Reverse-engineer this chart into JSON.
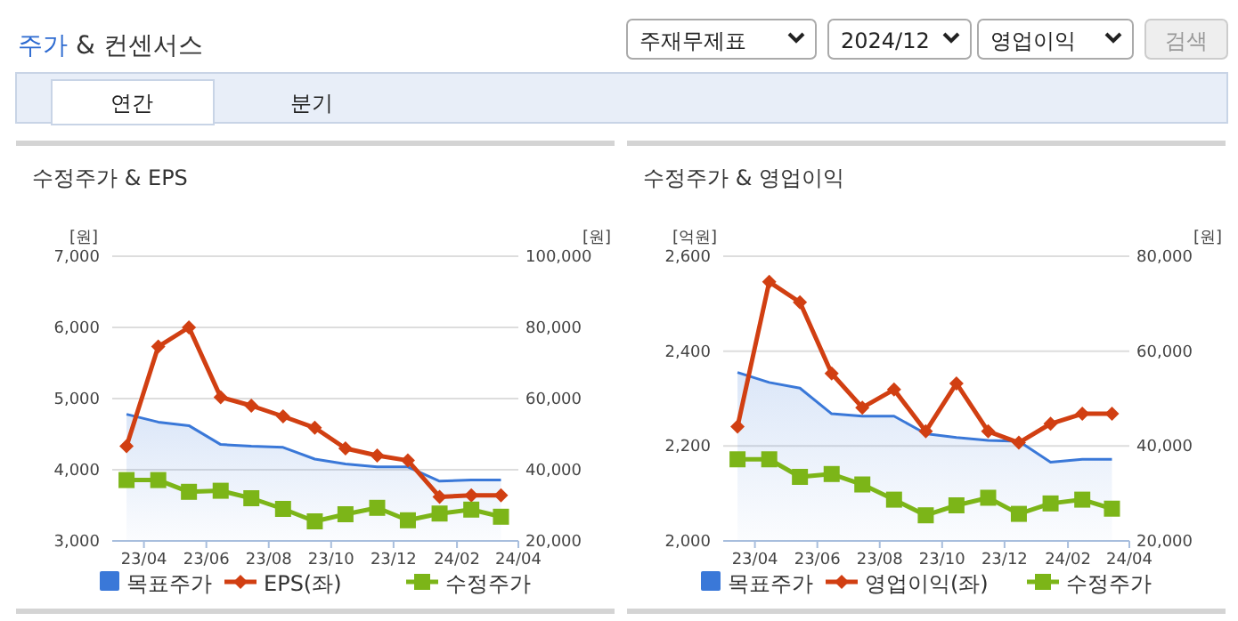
{
  "chart_data": [
    {
      "type": "other",
      "title": "주가 & 컨센서스",
      "annotations": [
        "주재무제표",
        "2024/12",
        "영업이익",
        "검색",
        "연간",
        "분기"
      ]
    },
    {
      "type": "line",
      "title": "수정주가 & EPS",
      "ylabel": "[원]",
      "y2label": "[원]",
      "x": [
        "2023-03-15",
        "2023-04-15",
        "2023-05-15",
        "2023-06-15",
        "2023-07-15",
        "2023-08-15",
        "2023-09-15",
        "2023-10-15",
        "2023-11-15",
        "2023-12-15",
        "2024-01-15",
        "2024-02-15",
        "2024-03-15"
      ],
      "xlim": [
        "2023-03",
        "2024-04"
      ],
      "xticks": [
        {
          "value": "2023-04",
          "label": "23/04"
        },
        {
          "value": "2023-06",
          "label": "23/06"
        },
        {
          "value": "2023-08",
          "label": "23/08"
        },
        {
          "value": "2023-10",
          "label": "23/10"
        },
        {
          "value": "2023-12",
          "label": "23/12"
        },
        {
          "value": "2024-02",
          "label": "24/02"
        },
        {
          "value": "2024-04",
          "label": "24/04"
        }
      ],
      "ylim": [
        3000,
        7000
      ],
      "yticks": [
        {
          "value": 3000,
          "label": "3,000"
        },
        {
          "value": 4000,
          "label": "4,000"
        },
        {
          "value": 5000,
          "label": "5,000"
        },
        {
          "value": 6000,
          "label": "6,000"
        },
        {
          "value": 7000,
          "label": "7,000"
        }
      ],
      "y2lim": [
        20000,
        100000
      ],
      "y2ticks": [
        {
          "value": 20000,
          "label": "20,000"
        },
        {
          "value": 40000,
          "label": "40,000"
        },
        {
          "value": 60000,
          "label": "60,000"
        },
        {
          "value": 80000,
          "label": "80,000"
        },
        {
          "value": 100000,
          "label": "100,000"
        }
      ],
      "grid": "y",
      "legend": "bottom",
      "series": [
        {
          "name": "목표주가",
          "type": "area",
          "axis": "y2",
          "color": "#3a78d8",
          "values": [
            55600,
            53400,
            52400,
            47100,
            46600,
            46300,
            43000,
            41600,
            40800,
            40800,
            36800,
            37100,
            37100
          ]
        },
        {
          "name": "EPS(좌)",
          "type": "line",
          "axis": "y",
          "color": "#d13f12",
          "marker": "diamond",
          "values": [
            4330,
            5730,
            6000,
            5020,
            4900,
            4750,
            4590,
            4300,
            4200,
            4130,
            3620,
            3640,
            3640
          ]
        },
        {
          "name": "수정주가",
          "type": "line",
          "axis": "y2",
          "color": "#7cb518",
          "marker": "square",
          "values": [
            37100,
            37100,
            33800,
            34100,
            32000,
            29000,
            25500,
            27500,
            29300,
            25800,
            27700,
            28800,
            26800
          ]
        }
      ]
    },
    {
      "type": "line",
      "title": "수정주가 & 영업이익",
      "ylabel": "[억원]",
      "y2label": "[원]",
      "x": [
        "2023-03-15",
        "2023-04-15",
        "2023-05-15",
        "2023-06-15",
        "2023-07-15",
        "2023-08-15",
        "2023-09-15",
        "2023-10-15",
        "2023-11-15",
        "2023-12-15",
        "2024-01-15",
        "2024-02-15",
        "2024-03-15"
      ],
      "xlim": [
        "2023-03",
        "2024-04"
      ],
      "xticks": [
        {
          "value": "2023-04",
          "label": "23/04"
        },
        {
          "value": "2023-06",
          "label": "23/06"
        },
        {
          "value": "2023-08",
          "label": "23/08"
        },
        {
          "value": "2023-10",
          "label": "23/10"
        },
        {
          "value": "2023-12",
          "label": "23/12"
        },
        {
          "value": "2024-02",
          "label": "24/02"
        },
        {
          "value": "2024-04",
          "label": "24/04"
        }
      ],
      "ylim": [
        2000,
        2600
      ],
      "yticks": [
        {
          "value": 2000,
          "label": "2,000"
        },
        {
          "value": 2200,
          "label": "2,200"
        },
        {
          "value": 2400,
          "label": "2,400"
        },
        {
          "value": 2600,
          "label": "2,600"
        }
      ],
      "y2lim": [
        20000,
        80000
      ],
      "y2ticks": [
        {
          "value": 20000,
          "label": "20,000"
        },
        {
          "value": 40000,
          "label": "40,000"
        },
        {
          "value": 60000,
          "label": "60,000"
        },
        {
          "value": 80000,
          "label": "80,000"
        }
      ],
      "grid": "y",
      "legend": "bottom",
      "series": [
        {
          "name": "목표주가",
          "type": "area",
          "axis": "y2",
          "color": "#3a78d8",
          "values": [
            55500,
            53400,
            52200,
            46800,
            46300,
            46300,
            42600,
            41800,
            41200,
            41000,
            36600,
            37200,
            37200
          ]
        },
        {
          "name": "영업이익(좌)",
          "type": "line",
          "axis": "y",
          "color": "#d13f12",
          "marker": "diamond",
          "values": [
            2241,
            2546,
            2503,
            2353,
            2281,
            2319,
            2231,
            2332,
            2231,
            2207,
            2247,
            2268,
            2268
          ]
        },
        {
          "name": "수정주가",
          "type": "line",
          "axis": "y2",
          "color": "#7cb518",
          "marker": "square",
          "values": [
            37200,
            37200,
            33500,
            34100,
            31900,
            28700,
            25400,
            27500,
            29100,
            25700,
            27900,
            28700,
            26800
          ]
        }
      ]
    }
  ]
}
